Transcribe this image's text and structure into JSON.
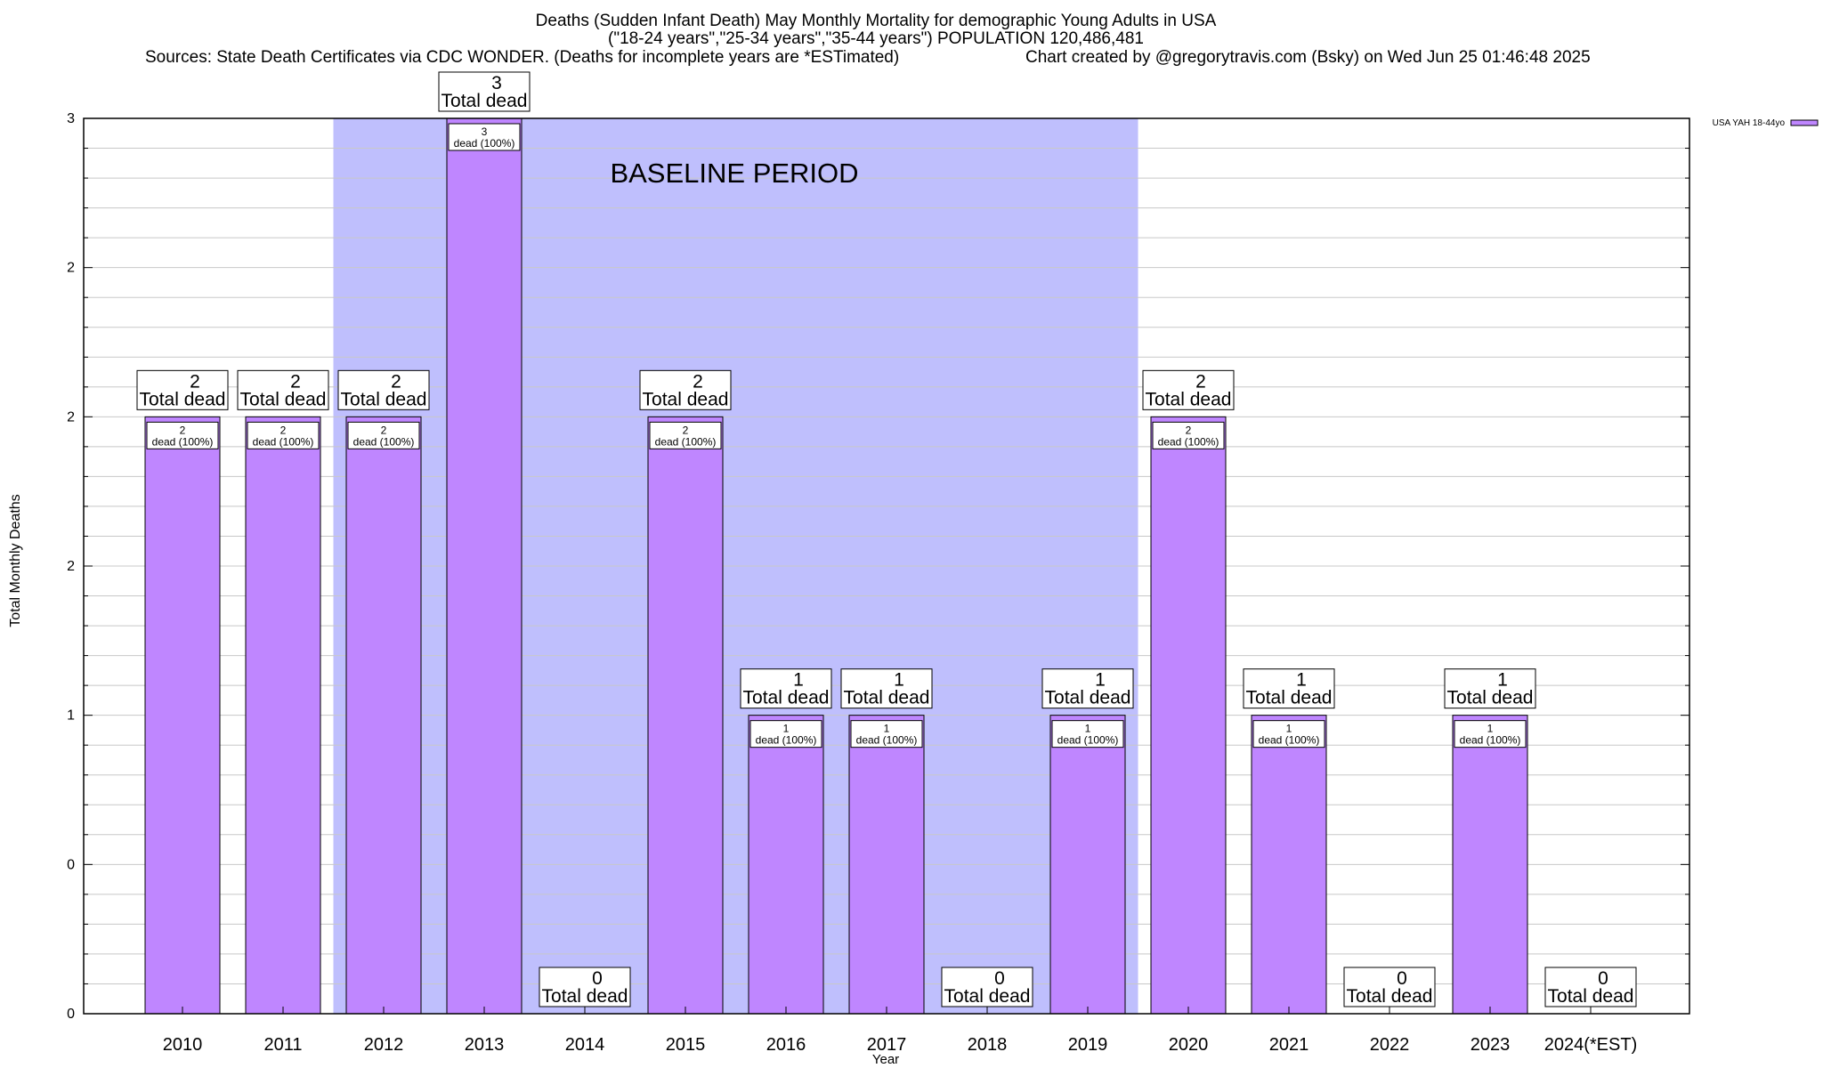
{
  "chart_data": {
    "type": "bar",
    "title_line1": "Deaths (Sudden Infant Death) May Monthly Mortality for demographic Young Adults in USA",
    "title_line2": "(\"18-24 years\",\"25-34 years\",\"35-44 years\") POPULATION 120,486,481",
    "sources": "Sources: State Death Certificates via CDC WONDER. (Deaths for incomplete years are *ESTimated)",
    "credit": "Chart created by @gregorytravis.com (Bsky) on Wed Jun 25 01:46:48 2025",
    "xlabel": "Year",
    "ylabel": "Total Monthly Deaths",
    "categories": [
      "2010",
      "2011",
      "2012",
      "2013",
      "2014",
      "2015",
      "2016",
      "2017",
      "2018",
      "2019",
      "2020",
      "2021",
      "2022",
      "2023",
      "2024(*EST)"
    ],
    "series": [
      {
        "name": "USA YAH 18-44yo",
        "values": [
          2,
          2,
          2,
          3,
          0,
          2,
          1,
          1,
          0,
          1,
          2,
          1,
          0,
          1,
          0
        ],
        "color": "#bf86ff"
      }
    ],
    "total_label_suffix": "Total dead",
    "bar_label_suffix": "dead (100%)",
    "ylim": [
      0,
      3
    ],
    "y_tick_labels": [
      "0",
      "0",
      "1",
      "2",
      "2",
      "2",
      "3"
    ],
    "y_tick_values": [
      0,
      0.5,
      1,
      1.5,
      2,
      2.5,
      3
    ],
    "grid": true,
    "legend_position": "top-right",
    "baseline_period": {
      "start": "2012",
      "end": "2019",
      "label": "BASELINE PERIOD",
      "color": "#bfbffd"
    }
  }
}
